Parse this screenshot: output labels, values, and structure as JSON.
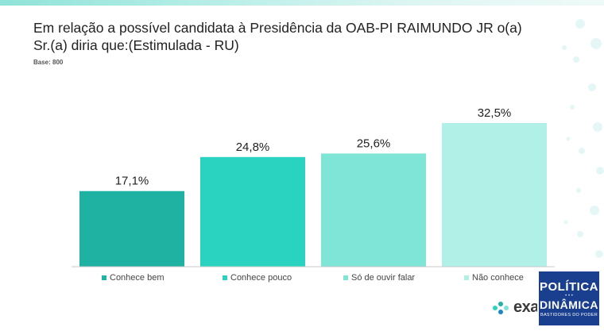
{
  "title": "Em relação a possível candidata à Presidência da OAB-PI RAIMUNDO JR o(a) Sr.(a) diria que:(Estimulada - RU)",
  "base": "Base: 800",
  "colors": {
    "bar1": "#1fb2a2",
    "bar2": "#2ad3bf",
    "bar3": "#7ee5d7",
    "bar4": "#b0f0e7",
    "accent": "#1fb2a2"
  },
  "chart_data": {
    "type": "bar",
    "categories": [
      "Conhece bem",
      "Conhece pouco",
      "Só de ouvir falar",
      "Não conhece"
    ],
    "values": [
      17.1,
      24.8,
      25.6,
      32.5
    ],
    "data_labels": [
      "17,1%",
      "24,8%",
      "25,6%",
      "32,5%"
    ],
    "title": "Em relação a possível candidata à Presidência da OAB-PI RAIMUNDO JR o(a) Sr.(a) diria que:(Estimulada - RU)",
    "xlabel": "",
    "ylabel": "",
    "ylim": [
      0,
      35
    ],
    "grid": false,
    "legend": "bottom"
  },
  "brand": {
    "name": "exati",
    "icon": "dots-logo-icon"
  },
  "watermark": {
    "line1": "POLÍTICA",
    "line2": "DINÂMICA",
    "line3": "BASTIDORES DO PODER"
  }
}
